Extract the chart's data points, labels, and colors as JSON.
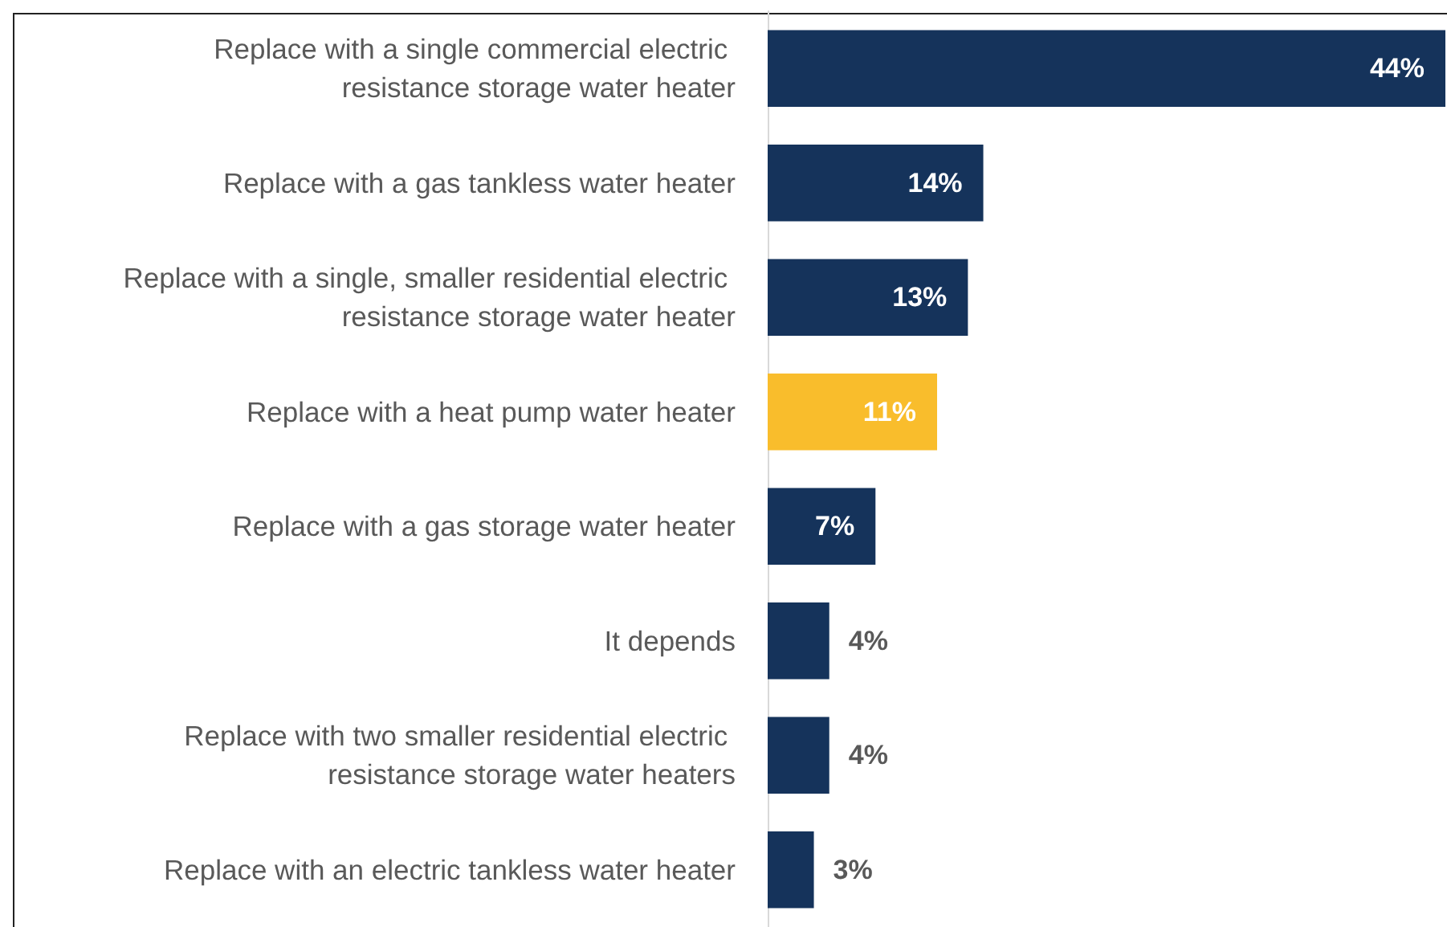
{
  "chart_data": {
    "type": "bar",
    "orientation": "horizontal",
    "categories": [
      "Replace with a single commercial electric resistance storage water heater",
      "Replace with a gas tankless water heater",
      "Replace with a single, smaller residential electric resistance storage water heater",
      "Replace with a heat pump water heater",
      "Replace with a gas storage water heater",
      "It depends",
      "Replace with two smaller residential electric resistance storage water heaters",
      "Replace with an electric tankless water heater"
    ],
    "values": [
      44,
      14,
      13,
      11,
      7,
      4,
      4,
      3
    ],
    "value_labels": [
      "44%",
      "14%",
      "13%",
      "11%",
      "7%",
      "4%",
      "4%",
      "3%"
    ],
    "colors": [
      "#15335b",
      "#15335b",
      "#15335b",
      "#f9bd2c",
      "#15335b",
      "#15335b",
      "#15335b",
      "#15335b"
    ]
  }
}
